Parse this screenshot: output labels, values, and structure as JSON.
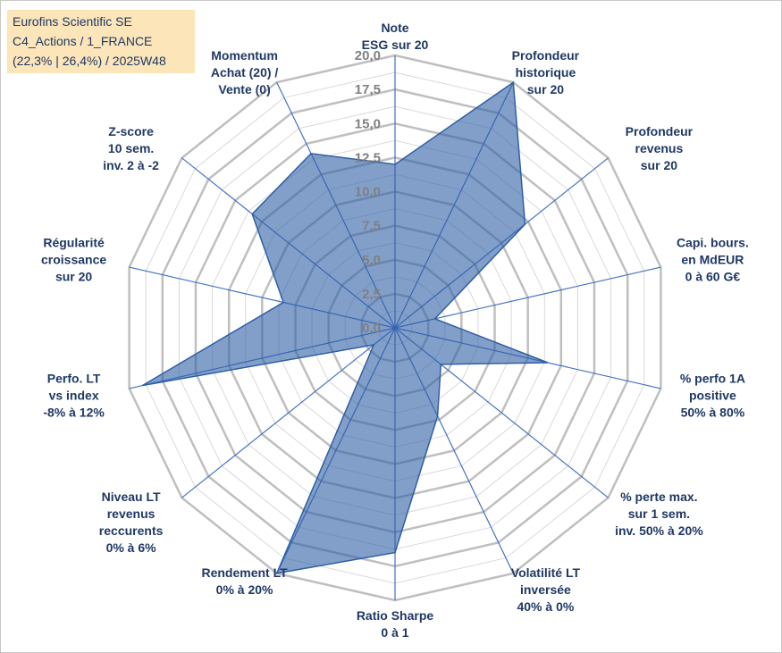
{
  "title_box": {
    "line1": "Eurofins Scientific SE",
    "line2": "C4_Actions / 1_FRANCE",
    "line3": "(22,3% | 26,4%) / 2025W48"
  },
  "chart_data": {
    "type": "radar",
    "rmin": 0,
    "rmax": 20,
    "ticks": [
      "0,0",
      "2,5",
      "5,0",
      "7,5",
      "10,0",
      "12,5",
      "15,0",
      "17,5",
      "20,0"
    ],
    "tick_values": [
      0,
      2.5,
      5,
      7.5,
      10,
      12.5,
      15,
      17.5,
      20
    ],
    "grid_step": 1.25,
    "categories": [
      [
        "Note",
        "ESG sur 20"
      ],
      [
        "Profondeur",
        "historique",
        "sur 20"
      ],
      [
        "Profondeur",
        "revenus",
        "sur 20"
      ],
      [
        "Capi. bours.",
        "en MdEUR",
        "0 à 60 G€"
      ],
      [
        "% perfo 1A",
        "positive",
        "50% à 80%"
      ],
      [
        "% perte max.",
        "sur 1 sem.",
        "inv. 50% à 20%"
      ],
      [
        "Volatilité LT",
        "inversée",
        "40% à 0%"
      ],
      [
        "Ratio Sharpe",
        "0 à 1"
      ],
      [
        "Rendement LT",
        "0% à 20%"
      ],
      [
        "Niveau LT",
        "revenus",
        "reccurents",
        "0% à 6%"
      ],
      [
        "Perfo. LT",
        "vs index",
        "-8% à 12%"
      ],
      [
        "Régularité",
        "croissance",
        "sur 20"
      ],
      [
        "Z-score",
        "10 sem.",
        "inv. 2 à -2"
      ],
      [
        "Momentum",
        "Achat (20) /",
        "Vente (0)"
      ]
    ],
    "values": [
      12,
      20,
      12.2,
      3,
      11.5,
      4.3,
      7.2,
      16.5,
      20,
      2,
      19,
      8.4,
      13.4,
      14.2
    ],
    "colors": {
      "fill": "#2e5fa5",
      "fill_opacity": 0.6,
      "series_line": "#2e5fa5",
      "axis_line": "#4472c4",
      "outer_grid": "#bfbfbf",
      "inner_grid": "#d9d9d9",
      "label_text": "#1f3864",
      "tick_text": "#808080"
    }
  }
}
